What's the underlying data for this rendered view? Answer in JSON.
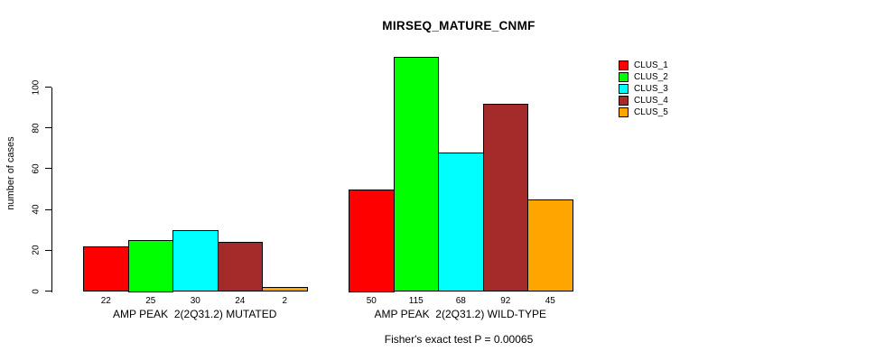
{
  "chart_data": {
    "type": "bar",
    "title": "MIRSEQ_MATURE_CNMF",
    "ylabel": "number of cases",
    "annotation": "Fisher's exact test P = 0.00065",
    "categories": [
      "AMP PEAK  2(2Q31.2) MUTATED",
      "AMP PEAK  2(2Q31.2) WILD-TYPE"
    ],
    "series": [
      {
        "name": "CLUS_1",
        "color": "#FF0000",
        "values": [
          22,
          50
        ]
      },
      {
        "name": "CLUS_2",
        "color": "#00FF00",
        "values": [
          25,
          115
        ]
      },
      {
        "name": "CLUS_3",
        "color": "#00FFFF",
        "values": [
          30,
          68
        ]
      },
      {
        "name": "CLUS_4",
        "color": "#A52A2A",
        "values": [
          24,
          92
        ]
      },
      {
        "name": "CLUS_5",
        "color": "#FFA500",
        "values": [
          2,
          45
        ]
      }
    ],
    "bar_value_labels": [
      [
        22,
        25,
        30,
        24,
        2
      ],
      [
        50,
        115,
        68,
        92,
        45
      ]
    ],
    "yticks": [
      0,
      20,
      40,
      60,
      80,
      100
    ],
    "ylim": [
      0,
      115
    ],
    "grid": false,
    "legend_position": "top-right",
    "legend_entries": [
      "CLUS_1",
      "CLUS_2",
      "CLUS_3",
      "CLUS_4",
      "CLUS_5"
    ],
    "axis_color": "#000000",
    "text_color": "#000000",
    "background_color": "#FFFFFF"
  }
}
